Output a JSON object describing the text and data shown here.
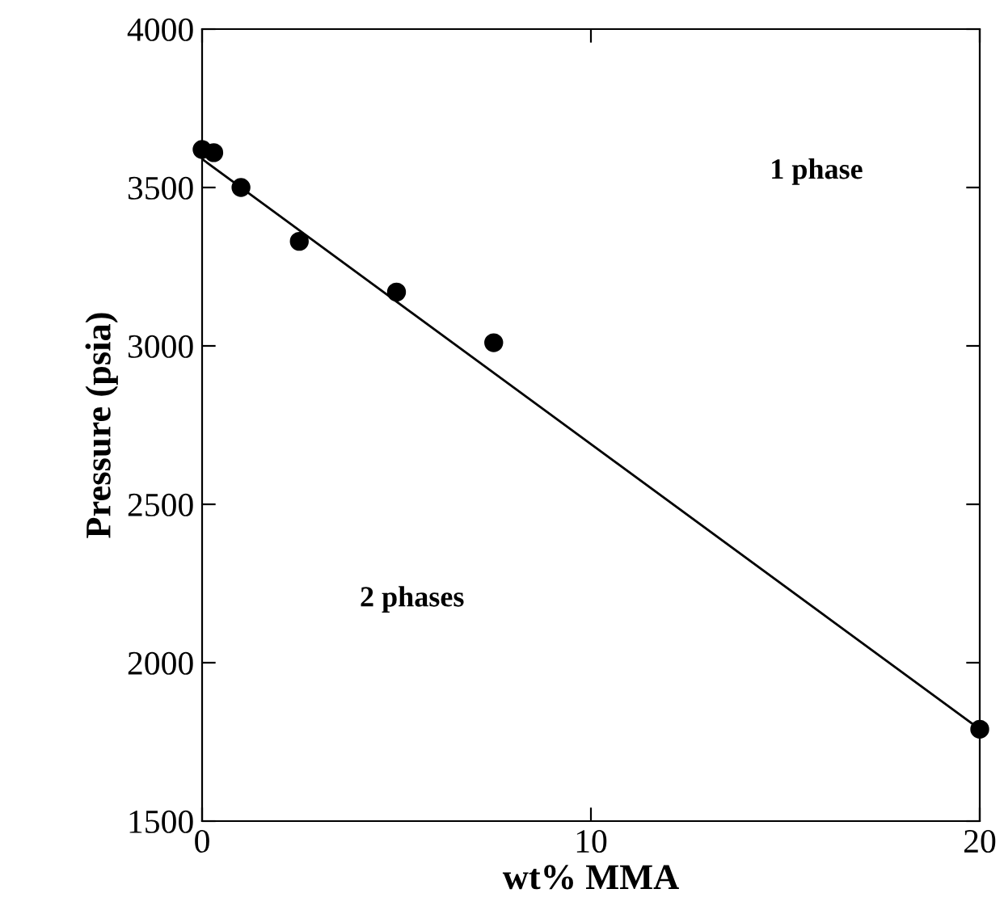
{
  "chart_data": {
    "type": "scatter",
    "xlabel": "wt% MMA",
    "ylabel": "Pressure (psia)",
    "x": [
      0,
      0.3,
      1,
      2.5,
      5,
      7.5,
      20
    ],
    "series": [
      {
        "color": "#000000",
        "values": [
          3620,
          3610,
          3500,
          3330,
          3170,
          3010,
          1790
        ]
      },
      {
        "type": "line",
        "marker": "none",
        "color": "#000000",
        "x": [
          0,
          20
        ],
        "values": [
          3590,
          1790
        ]
      }
    ],
    "xlim": [
      0,
      20
    ],
    "ylim": [
      1500,
      4000
    ],
    "xticks": [
      0,
      10,
      20
    ],
    "yticks": [
      1500,
      2000,
      2500,
      3000,
      3500,
      4000
    ],
    "marker": "circle",
    "grid": false,
    "legend": false,
    "annotations": [
      "1 phase",
      "2 phases"
    ]
  }
}
